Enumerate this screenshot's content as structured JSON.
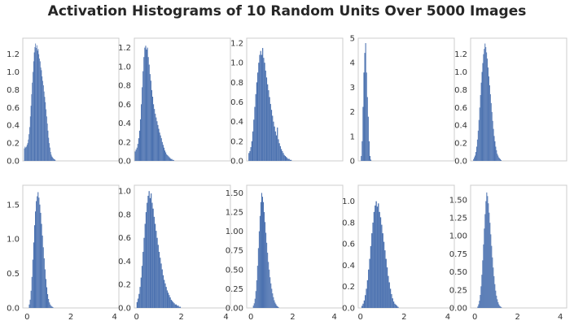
{
  "title": "Activation Histograms of 10 Random Units Over 5000 Images",
  "colors": {
    "bar": "#4c72b0",
    "axes_edge": "#cccccc",
    "tick_text": "#333333"
  },
  "chart_data": [
    {
      "type": "bar",
      "row": 0,
      "col": 0,
      "xlim": [
        0,
        4.4
      ],
      "ylim": [
        0,
        1.38
      ],
      "xticks": [],
      "yticks": [
        0,
        0.2,
        0.4,
        0.6,
        0.8,
        1.0,
        1.2
      ],
      "ytick_labels": [
        "0.0",
        "0.2",
        "0.4",
        "0.6",
        "0.8",
        "1.0",
        "1.2"
      ],
      "xtick_labels": [],
      "bins": {
        "start": 0.06,
        "width": 0.03,
        "heights": [
          0.14,
          0.16,
          0.15,
          0.16,
          0.18,
          0.2,
          0.24,
          0.3,
          0.38,
          0.5,
          0.62,
          0.75,
          0.88,
          1.0,
          1.12,
          1.22,
          1.28,
          1.32,
          1.27,
          1.3,
          1.24,
          1.26,
          1.2,
          1.15,
          1.12,
          1.05,
          1.02,
          0.95,
          0.9,
          0.85,
          0.78,
          0.72,
          0.66,
          0.58,
          0.5,
          0.42,
          0.34,
          0.26,
          0.2,
          0.15,
          0.1,
          0.07,
          0.05,
          0.04,
          0.03,
          0.02,
          0.02,
          0.01
        ]
      }
    },
    {
      "type": "bar",
      "row": 0,
      "col": 1,
      "xlim": [
        0,
        4.4
      ],
      "ylim": [
        0,
        1.3
      ],
      "xticks": [],
      "yticks": [
        0,
        0.2,
        0.4,
        0.6,
        0.8,
        1.0,
        1.2
      ],
      "ytick_labels": [
        "0.0",
        "0.2",
        "0.4",
        "0.6",
        "0.8",
        "1.0",
        "1.2"
      ],
      "xtick_labels": [],
      "bins": {
        "start": 0.02,
        "width": 0.04,
        "heights": [
          0.1,
          0.12,
          0.14,
          0.18,
          0.24,
          0.32,
          0.44,
          0.6,
          0.78,
          0.95,
          1.1,
          1.2,
          1.22,
          1.18,
          1.2,
          1.1,
          1.02,
          0.92,
          0.85,
          0.75,
          0.68,
          0.6,
          0.55,
          0.5,
          0.46,
          0.42,
          0.38,
          0.34,
          0.3,
          0.27,
          0.24,
          0.2,
          0.17,
          0.14,
          0.11,
          0.09,
          0.07,
          0.06,
          0.05,
          0.04,
          0.03,
          0.02,
          0.02,
          0.01,
          0.01
        ]
      }
    },
    {
      "type": "bar",
      "row": 0,
      "col": 2,
      "xlim": [
        0,
        4.4
      ],
      "ylim": [
        0,
        1.25
      ],
      "xticks": [],
      "yticks": [
        0,
        0.2,
        0.4,
        0.6,
        0.8,
        1.0,
        1.2
      ],
      "ytick_labels": [
        "0.0",
        "0.2",
        "0.4",
        "0.6",
        "0.8",
        "1.0",
        "1.2"
      ],
      "xtick_labels": [],
      "bins": {
        "start": 0.08,
        "width": 0.045,
        "heights": [
          0.08,
          0.1,
          0.14,
          0.2,
          0.3,
          0.42,
          0.55,
          0.68,
          0.8,
          0.9,
          1.0,
          1.08,
          1.12,
          1.08,
          1.15,
          1.05,
          1.0,
          0.92,
          0.85,
          0.78,
          0.72,
          0.65,
          0.58,
          0.52,
          0.46,
          0.4,
          0.35,
          0.3,
          0.26,
          0.34,
          0.22,
          0.18,
          0.15,
          0.12,
          0.1,
          0.08,
          0.06,
          0.05,
          0.04,
          0.03,
          0.02,
          0.02,
          0.01,
          0.01
        ]
      }
    },
    {
      "type": "bar",
      "row": 0,
      "col": 3,
      "xlim": [
        0,
        4.4
      ],
      "ylim": [
        0,
        5.0
      ],
      "xticks": [],
      "yticks": [
        0,
        1,
        2,
        3,
        4,
        5
      ],
      "ytick_labels": [
        "0",
        "1",
        "2",
        "3",
        "4",
        "5"
      ],
      "xtick_labels": [],
      "bins": {
        "start": 0.12,
        "width": 0.04,
        "heights": [
          0.2,
          0.8,
          2.2,
          3.6,
          4.4,
          4.8,
          3.6,
          2.6,
          1.8,
          0.8,
          0.2,
          0.05
        ]
      }
    },
    {
      "type": "bar",
      "row": 0,
      "col": 4,
      "xlim": [
        0,
        4.4
      ],
      "ylim": [
        0,
        1.38
      ],
      "xticks": [],
      "yticks": [
        0,
        0.2,
        0.4,
        0.6,
        0.8,
        1.0,
        1.2
      ],
      "ytick_labels": [
        "0.0",
        "0.2",
        "0.4",
        "0.6",
        "0.8",
        "1.0",
        "1.2"
      ],
      "xtick_labels": [],
      "bins": {
        "start": 0.12,
        "width": 0.035,
        "heights": [
          0.02,
          0.04,
          0.06,
          0.1,
          0.16,
          0.24,
          0.34,
          0.46,
          0.6,
          0.74,
          0.88,
          1.0,
          1.1,
          1.2,
          1.26,
          1.32,
          1.28,
          1.22,
          1.15,
          1.05,
          0.95,
          0.85,
          0.75,
          0.65,
          0.55,
          0.45,
          0.36,
          0.28,
          0.22,
          0.16,
          0.12,
          0.08,
          0.06,
          0.04,
          0.03,
          0.02,
          0.01
        ]
      }
    },
    {
      "type": "bar",
      "row": 1,
      "col": 0,
      "xlim": [
        -0.2,
        4.2
      ],
      "ylim": [
        0,
        1.78
      ],
      "xticks": [
        0,
        2,
        4
      ],
      "yticks": [
        0,
        0.5,
        1.0,
        1.5
      ],
      "ytick_labels": [
        "0.0",
        "0.5",
        "1.0",
        "1.5"
      ],
      "xtick_labels": [
        "0",
        "2",
        "4"
      ],
      "bins": {
        "start": 0.08,
        "width": 0.04,
        "heights": [
          0.05,
          0.12,
          0.25,
          0.45,
          0.7,
          0.95,
          1.2,
          1.4,
          1.55,
          1.62,
          1.68,
          1.6,
          1.5,
          1.38,
          1.22,
          1.05,
          0.88,
          0.72,
          0.56,
          0.42,
          0.3,
          0.2,
          0.13,
          0.08,
          0.05,
          0.03,
          0.02,
          0.01
        ]
      }
    },
    {
      "type": "bar",
      "row": 1,
      "col": 1,
      "xlim": [
        -0.1,
        4.2
      ],
      "ylim": [
        0,
        1.05
      ],
      "xticks": [
        0,
        2,
        4
      ],
      "yticks": [
        0,
        0.2,
        0.4,
        0.6,
        0.8,
        1.0
      ],
      "ytick_labels": [
        "0.0",
        "0.2",
        "0.4",
        "0.6",
        "0.8",
        "1.0"
      ],
      "xtick_labels": [
        "0",
        "2",
        "4"
      ],
      "bins": {
        "start": 0.0,
        "width": 0.045,
        "heights": [
          0.05,
          0.08,
          0.12,
          0.18,
          0.26,
          0.36,
          0.48,
          0.6,
          0.72,
          0.82,
          0.9,
          0.96,
          1.0,
          0.94,
          0.98,
          0.9,
          0.85,
          0.78,
          0.72,
          0.66,
          0.6,
          0.54,
          0.48,
          0.43,
          0.38,
          0.33,
          0.28,
          0.24,
          0.21,
          0.18,
          0.15,
          0.13,
          0.11,
          0.09,
          0.07,
          0.06,
          0.05,
          0.04,
          0.03,
          0.03,
          0.02,
          0.02,
          0.01,
          0.01
        ]
      }
    },
    {
      "type": "bar",
      "row": 1,
      "col": 2,
      "xlim": [
        -0.2,
        4.4
      ],
      "ylim": [
        0,
        1.6
      ],
      "xticks": [
        0,
        2,
        4
      ],
      "yticks": [
        0,
        0.25,
        0.5,
        0.75,
        1.0,
        1.25,
        1.5
      ],
      "ytick_labels": [
        "0.00",
        "0.25",
        "0.50",
        "0.75",
        "1.00",
        "1.25",
        "1.50"
      ],
      "xtick_labels": [
        "0",
        "2",
        "4"
      ],
      "bins": {
        "start": 0.1,
        "width": 0.04,
        "heights": [
          0.03,
          0.06,
          0.12,
          0.22,
          0.36,
          0.55,
          0.78,
          1.0,
          1.2,
          1.38,
          1.5,
          1.45,
          1.38,
          1.25,
          1.12,
          0.98,
          0.85,
          0.72,
          0.6,
          0.5,
          0.4,
          0.32,
          0.25,
          0.19,
          0.14,
          0.1,
          0.07,
          0.05,
          0.03,
          0.02,
          0.01
        ]
      }
    },
    {
      "type": "bar",
      "row": 1,
      "col": 3,
      "xlim": [
        -0.1,
        4.3
      ],
      "ylim": [
        0,
        1.15
      ],
      "xticks": [
        0,
        2,
        4
      ],
      "yticks": [
        0,
        0.2,
        0.4,
        0.6,
        0.8,
        1.0
      ],
      "ytick_labels": [
        "0.0",
        "0.2",
        "0.4",
        "0.6",
        "0.8",
        "1.0"
      ],
      "xtick_labels": [
        "0",
        "2",
        "4"
      ],
      "bins": {
        "start": 0.05,
        "width": 0.05,
        "heights": [
          0.02,
          0.04,
          0.07,
          0.12,
          0.18,
          0.26,
          0.36,
          0.46,
          0.58,
          0.7,
          0.8,
          0.9,
          0.96,
          1.0,
          0.95,
          0.98,
          0.9,
          0.85,
          0.78,
          0.7,
          0.62,
          0.54,
          0.46,
          0.38,
          0.3,
          0.24,
          0.18,
          0.13,
          0.09,
          0.06,
          0.04,
          0.03,
          0.02,
          0.01
        ]
      }
    },
    {
      "type": "bar",
      "row": 1,
      "col": 4,
      "xlim": [
        -0.2,
        4.3
      ],
      "ylim": [
        0,
        1.7
      ],
      "xticks": [
        0,
        2,
        4
      ],
      "yticks": [
        0,
        0.25,
        0.5,
        0.75,
        1.0,
        1.25,
        1.5
      ],
      "ytick_labels": [
        "0.00",
        "0.25",
        "0.50",
        "0.75",
        "1.00",
        "1.25",
        "1.50"
      ],
      "xtick_labels": [
        "0",
        "2",
        "4"
      ],
      "bins": {
        "start": 0.12,
        "width": 0.038,
        "heights": [
          0.02,
          0.05,
          0.1,
          0.18,
          0.3,
          0.46,
          0.66,
          0.88,
          1.1,
          1.3,
          1.48,
          1.6,
          1.55,
          1.45,
          1.32,
          1.18,
          1.02,
          0.86,
          0.7,
          0.56,
          0.44,
          0.33,
          0.24,
          0.17,
          0.12,
          0.08,
          0.05,
          0.03,
          0.02,
          0.01
        ]
      }
    }
  ]
}
